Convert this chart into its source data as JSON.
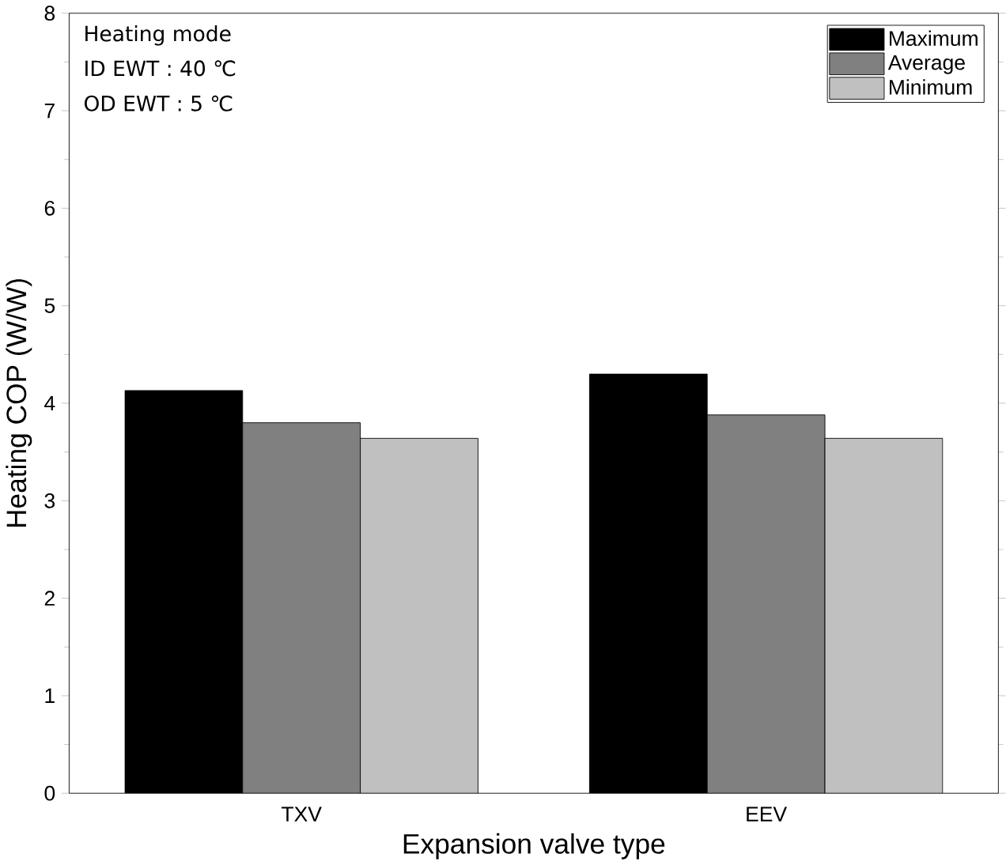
{
  "chart_data": {
    "type": "bar",
    "xlabel": "Expansion valve type",
    "ylabel": "Heating COP (W/W)",
    "categories": [
      "TXV",
      "EEV"
    ],
    "series": [
      {
        "name": "Maximum",
        "color": "#000000",
        "values": [
          4.13,
          4.3
        ]
      },
      {
        "name": "Average",
        "color": "#808080",
        "values": [
          3.8,
          3.88
        ]
      },
      {
        "name": "Minimum",
        "color": "#c0c0c0",
        "values": [
          3.64,
          3.64
        ]
      }
    ],
    "ylim": [
      0,
      8
    ],
    "yticks": [
      0,
      1,
      2,
      3,
      4,
      5,
      6,
      7,
      8
    ],
    "grid": false,
    "legend": "top right",
    "annotations": [
      "Heating mode",
      "ID   EWT :   40 ℃",
      "OD EWT :     5 ℃"
    ]
  }
}
